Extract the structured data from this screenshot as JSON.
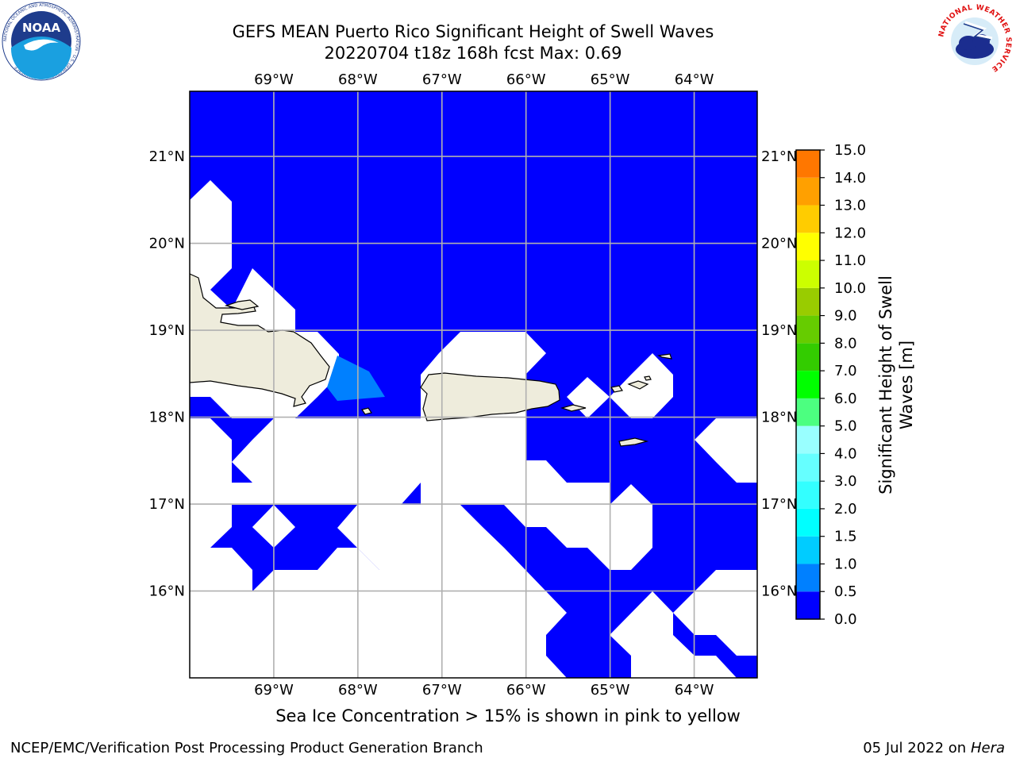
{
  "header": {
    "title_line1": "GEFS MEAN Puerto Rico Significant Height of Swell Waves",
    "title_line2": "20220704 t18z 168h fcst   Max: 0.69"
  },
  "logos": {
    "left": "noaa-logo",
    "left_text": "NOAA",
    "left_ring_text": "NATIONAL OCEANIC AND ATMOSPHERIC ADMINISTRATION · U.S. DEPARTMENT OF COMMERCE",
    "right": "nws-logo",
    "right_ring_text": "NATIONAL WEATHER SERVICE"
  },
  "map": {
    "lon_labels": [
      "69°W",
      "68°W",
      "67°W",
      "66°W",
      "65°W",
      "64°W"
    ],
    "lat_labels": [
      "21°N",
      "20°N",
      "19°N",
      "18°N",
      "17°N",
      "16°N"
    ],
    "lon_values": [
      -69,
      -68,
      -67,
      -66,
      -65,
      -64
    ],
    "lat_values": [
      21,
      20,
      19,
      18,
      17,
      16
    ],
    "extent": {
      "lon": [
        -70.0,
        -63.25
      ],
      "lat": [
        15.0,
        21.75
      ]
    },
    "ocean_color": "#0000ff",
    "secondary_color": "#0080ff",
    "land_color": "#eeecdc",
    "no_data_color": "#ffffff",
    "gridline_color": "#b0b0b0"
  },
  "colorbar": {
    "label": "Significant Height of Swell Waves [m]",
    "tick_labels": [
      "0.0",
      "0.5",
      "1.0",
      "1.5",
      "2.0",
      "3.0",
      "4.0",
      "5.0",
      "6.0",
      "7.0",
      "8.0",
      "9.0",
      "10.0",
      "11.0",
      "12.0",
      "13.0",
      "14.0",
      "15.0"
    ],
    "colors": [
      "#0000ff",
      "#0080ff",
      "#00ccff",
      "#00ffff",
      "#33ffff",
      "#66ffff",
      "#99ffff",
      "#4cff80",
      "#00ff00",
      "#33cc00",
      "#66cc00",
      "#99cc00",
      "#ccff00",
      "#ffff00",
      "#ffcc00",
      "#ffa000",
      "#ff7700",
      "#ff4400",
      "#ff0000"
    ]
  },
  "note": "Sea Ice Concentration > 15% is shown in pink to yellow",
  "footer": {
    "left": "NCEP/EMC/Verification Post Processing Product Generation Branch",
    "right_date": "05 Jul 2022 on",
    "right_host": "Hera"
  }
}
